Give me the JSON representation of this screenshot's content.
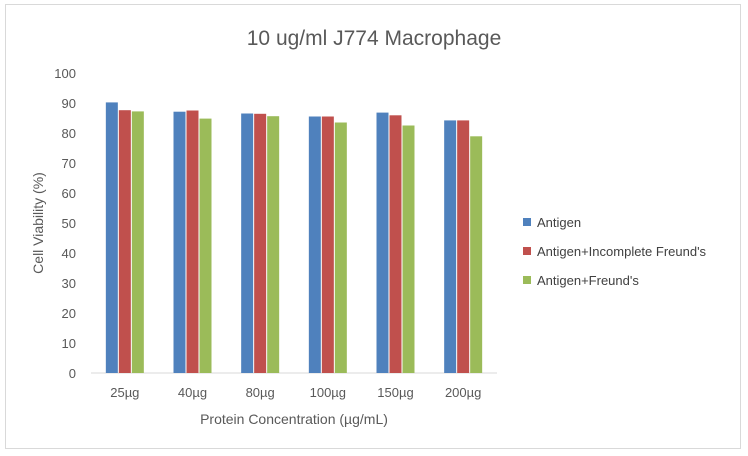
{
  "chart_data": {
    "type": "bar",
    "title": "10 ug/ml J774 Macrophage",
    "xlabel": "Protein Concentration (µg/mL)",
    "ylabel": "Cell Viability (%)",
    "categories": [
      "25µg",
      "40µg",
      "80µg",
      "100µg",
      "150µg",
      "200µg"
    ],
    "ylim": [
      0,
      100
    ],
    "yticks": [
      0,
      10,
      20,
      30,
      40,
      50,
      60,
      70,
      80,
      90,
      100
    ],
    "grid": false,
    "legend_position": "right",
    "series": [
      {
        "name": "Antigen",
        "color": "#4f81bd",
        "values": [
          90.2,
          87.1,
          86.5,
          85.5,
          86.8,
          84.2
        ]
      },
      {
        "name": "Antigen+Incomplete Freund's",
        "color": "#c0504d",
        "values": [
          87.6,
          87.5,
          86.4,
          85.5,
          85.9,
          84.2
        ]
      },
      {
        "name": "Antigen+Freund's",
        "color": "#9bbb59",
        "values": [
          87.2,
          84.8,
          85.6,
          83.5,
          82.5,
          78.9
        ]
      }
    ]
  }
}
